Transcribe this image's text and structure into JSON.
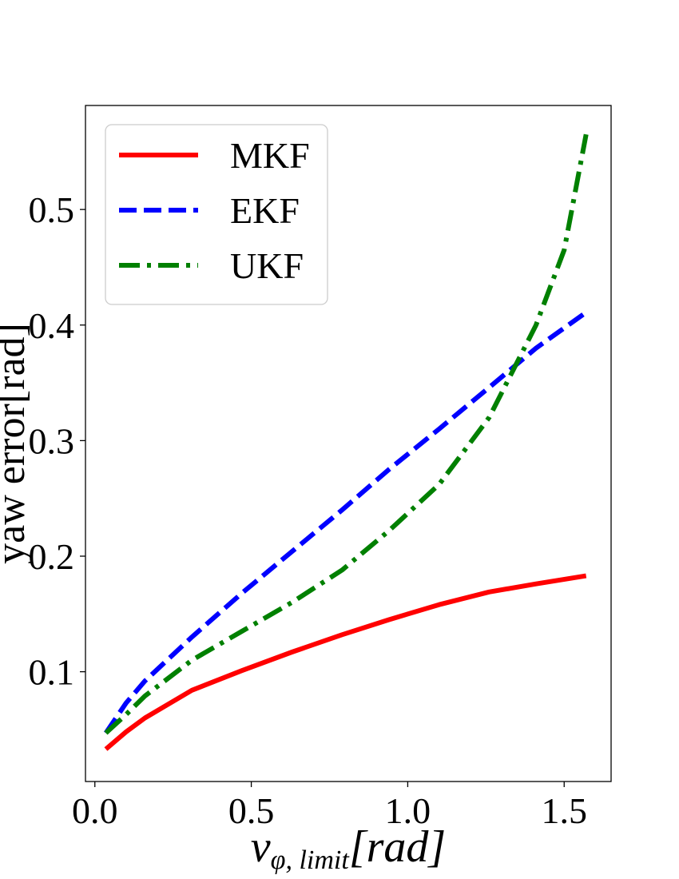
{
  "chart_data": {
    "type": "line",
    "xlabel": {
      "main": "v",
      "sub": "φ, limit",
      "unit": "[rad]"
    },
    "ylabel": "yaw error[rad]",
    "xlim": [
      -0.03,
      1.65
    ],
    "ylim": [
      0.005,
      0.59
    ],
    "xticks": [
      0.0,
      0.5,
      1.0,
      1.5
    ],
    "xtick_labels": [
      "0.0",
      "0.5",
      "1.0",
      "1.5"
    ],
    "yticks": [
      0.1,
      0.2,
      0.3,
      0.4,
      0.5
    ],
    "ytick_labels": [
      "0.1",
      "0.2",
      "0.3",
      "0.4",
      "0.5"
    ],
    "grid": false,
    "legend_position": "top-left",
    "series": [
      {
        "name": "MKF",
        "color": "#ff0000",
        "style": "solid",
        "points": [
          [
            0.035,
            0.033
          ],
          [
            0.1,
            0.048
          ],
          [
            0.16,
            0.06
          ],
          [
            0.31,
            0.084
          ],
          [
            0.47,
            0.101
          ],
          [
            0.63,
            0.117
          ],
          [
            0.79,
            0.132
          ],
          [
            0.94,
            0.145
          ],
          [
            1.1,
            0.158
          ],
          [
            1.26,
            0.169
          ],
          [
            1.41,
            0.176
          ],
          [
            1.57,
            0.183
          ]
        ]
      },
      {
        "name": "EKF",
        "color": "#0000ff",
        "style": "dashed",
        "points": [
          [
            0.035,
            0.047
          ],
          [
            0.1,
            0.073
          ],
          [
            0.16,
            0.092
          ],
          [
            0.31,
            0.13
          ],
          [
            0.47,
            0.168
          ],
          [
            0.63,
            0.204
          ],
          [
            0.79,
            0.24
          ],
          [
            0.94,
            0.275
          ],
          [
            1.1,
            0.31
          ],
          [
            1.26,
            0.346
          ],
          [
            1.41,
            0.38
          ],
          [
            1.57,
            0.411
          ]
        ]
      },
      {
        "name": "UKF",
        "color": "#008000",
        "style": "dashdot",
        "points": [
          [
            0.035,
            0.047
          ],
          [
            0.1,
            0.063
          ],
          [
            0.16,
            0.079
          ],
          [
            0.31,
            0.11
          ],
          [
            0.47,
            0.135
          ],
          [
            0.63,
            0.16
          ],
          [
            0.79,
            0.188
          ],
          [
            0.94,
            0.222
          ],
          [
            1.1,
            0.262
          ],
          [
            1.26,
            0.32
          ],
          [
            1.41,
            0.4
          ],
          [
            1.5,
            0.465
          ],
          [
            1.57,
            0.565
          ]
        ]
      }
    ]
  }
}
